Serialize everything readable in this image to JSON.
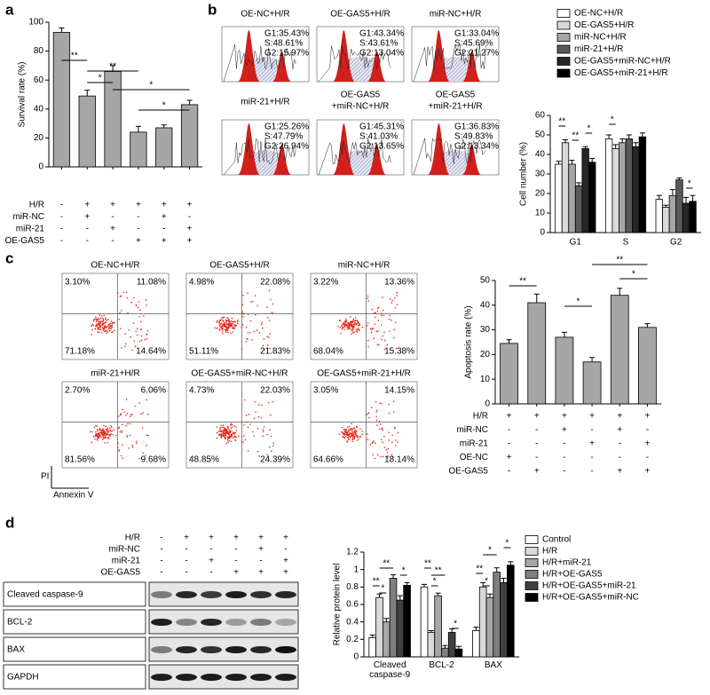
{
  "chart_data": [
    {
      "type": "bar",
      "panel_label": "a",
      "y_label": "Survival rate (%)",
      "color": "#a6a6a6",
      "categories": [
        null,
        null,
        null,
        null,
        null,
        null
      ],
      "values": [
        93,
        49,
        66,
        24,
        27,
        43
      ],
      "errors": [
        3,
        4,
        4,
        4,
        2,
        3
      ],
      "ylim": [
        0,
        100
      ],
      "yticks": [
        0,
        20,
        40,
        60,
        80,
        100
      ],
      "significance": [
        "**",
        "*",
        "**",
        "*",
        "*"
      ],
      "condition_table": [
        {
          "label": "H/R",
          "cells": [
            "-",
            "+",
            "+",
            "+",
            "+",
            "+"
          ]
        },
        {
          "label": "miR-NC",
          "cells": [
            "-",
            "+",
            "-",
            "-",
            "+",
            "-"
          ]
        },
        {
          "label": "miR-21",
          "cells": [
            "-",
            "-",
            "+",
            "-",
            "-",
            "+"
          ]
        },
        {
          "label": "OE-GAS5",
          "cells": [
            "-",
            "-",
            "-",
            "+",
            "+",
            "+"
          ]
        }
      ]
    },
    {
      "type": "grouped-bar",
      "panel_label": "b",
      "y_label": "Cell number (%)",
      "categories": [
        "G1",
        "S",
        "G2"
      ],
      "series": [
        {
          "name": "OE-NC+H/R",
          "color": "#ffffff",
          "values": [
            35,
            48,
            17
          ],
          "errors": [
            1.5,
            2,
            2
          ]
        },
        {
          "name": "OE-GAS5+H/R",
          "color": "#d9d9d9",
          "values": [
            46,
            43,
            13
          ],
          "errors": [
            1.5,
            2,
            1
          ]
        },
        {
          "name": "miR-NC+H/R",
          "color": "#a6a6a6",
          "values": [
            35,
            46,
            19
          ],
          "errors": [
            2,
            2,
            3
          ]
        },
        {
          "name": "miR-21+H/R",
          "color": "#595959",
          "values": [
            24,
            48,
            27
          ],
          "errors": [
            1.5,
            2,
            1
          ]
        },
        {
          "name": "OE-GAS5+miR-NC+H/R",
          "color": "#262626",
          "values": [
            43,
            44,
            15
          ],
          "errors": [
            1,
            2,
            3
          ]
        },
        {
          "name": "OE-GAS5+miR-21+H/R",
          "color": "#000000",
          "values": [
            36,
            49,
            16
          ],
          "errors": [
            2,
            2,
            3
          ]
        }
      ],
      "ylim": [
        0,
        60
      ],
      "yticks": [
        0,
        10,
        20,
        30,
        40,
        50,
        60
      ],
      "significance": [
        "**",
        "**",
        "*",
        "*",
        "*"
      ],
      "histograms": [
        {
          "title": [
            "OE-NC+H/R"
          ],
          "stats": [
            "G1:35.43%",
            "S:48.61%",
            "G2:15.97%"
          ]
        },
        {
          "title": [
            "OE-GAS5+H/R"
          ],
          "stats": [
            "G1:43.34%",
            "S:43.61%",
            "G2:13.04%"
          ]
        },
        {
          "title": [
            "miR-NC+H/R"
          ],
          "stats": [
            "G1:33.04%",
            "S:45.69%",
            "G2:21.27%"
          ]
        },
        {
          "title": [
            "miR-21+H/R"
          ],
          "stats": [
            "G1:25.26%",
            "S:47.79%",
            "G2:26.94%"
          ]
        },
        {
          "title": [
            "OE-GAS5",
            "+miR-NC+H/R"
          ],
          "stats": [
            "G1:45.31%",
            "S:41.03%",
            "G2:13.65%"
          ]
        },
        {
          "title": [
            "OE-GAS5",
            "+miR-21+H/R"
          ],
          "stats": [
            "G1:36.83%",
            "S:49.83%",
            "G2:13.34%"
          ]
        }
      ]
    },
    {
      "type": "bar",
      "panel_label": "c",
      "y_label": "Apoptosis rate (%)",
      "color": "#a6a6a6",
      "categories": [
        null,
        null,
        null,
        null,
        null,
        null
      ],
      "values": [
        24.5,
        41,
        27,
        17,
        44,
        31
      ],
      "errors": [
        1.5,
        3.5,
        2,
        1.8,
        2.8,
        1.5
      ],
      "ylim": [
        0,
        50
      ],
      "yticks": [
        0,
        10,
        20,
        30,
        40,
        50
      ],
      "significance": [
        "**",
        "*",
        "**",
        "*"
      ],
      "condition_table": [
        {
          "label": "H/R",
          "cells": [
            "+",
            "+",
            "+",
            "+",
            "+",
            "+"
          ]
        },
        {
          "label": "miR-NC",
          "cells": [
            "-",
            "-",
            "+",
            "-",
            "+",
            "-"
          ]
        },
        {
          "label": "miR-21",
          "cells": [
            "-",
            "-",
            "-",
            "+",
            "-",
            "+"
          ]
        },
        {
          "label": "OE-NC",
          "cells": [
            "+",
            "-",
            "-",
            "-",
            "-",
            "-"
          ]
        },
        {
          "label": "OE-GAS5",
          "cells": [
            "-",
            "+",
            "-",
            "-",
            "+",
            "+"
          ]
        }
      ],
      "flow_y_label": "PI",
      "flow_x_label": "Annexin V",
      "flow_plots": [
        {
          "title": "OE-NC+H/R",
          "quadrants": [
            "3.10%",
            "11.08%",
            "71.18%",
            "14.64%"
          ]
        },
        {
          "title": "OE-GAS5+H/R",
          "quadrants": [
            "4.98%",
            "22.08%",
            "51.11%",
            "21.83%"
          ]
        },
        {
          "title": "miR-NC+H/R",
          "quadrants": [
            "3.22%",
            "13.36%",
            "68.04%",
            "15.38%"
          ]
        },
        {
          "title": "miR-21+H/R",
          "quadrants": [
            "2.70%",
            "6.06%",
            "81.56%",
            "9.68%"
          ]
        },
        {
          "title": "OE-GAS5+miR-NC+H/R",
          "quadrants": [
            "4.73%",
            "22.03%",
            "48.85%",
            "24.39%"
          ]
        },
        {
          "title": "OE-GAS5+miR-21+H/R",
          "quadrants": [
            "3.05%",
            "14.15%",
            "64.66%",
            "18.14%"
          ]
        }
      ]
    },
    {
      "type": "grouped-bar",
      "panel_label": "d",
      "y_label": "Relative protein level",
      "categories": [
        "Cleaved caspase-9",
        "BCL-2",
        "BAX"
      ],
      "series": [
        {
          "name": "Control",
          "color": "#ffffff",
          "values": [
            0.22,
            0.8,
            0.3
          ],
          "errors": [
            0.03,
            0.03,
            0.04
          ]
        },
        {
          "name": "H/R",
          "color": "#d9d9d9",
          "values": [
            0.68,
            0.28,
            0.8
          ],
          "errors": [
            0.04,
            0.02,
            0.05
          ]
        },
        {
          "name": "H/R+miR-21",
          "color": "#a6a6a6",
          "values": [
            0.4,
            0.7,
            0.68
          ],
          "errors": [
            0.04,
            0.03,
            0.04
          ]
        },
        {
          "name": "H/R+OE-GAS5",
          "color": "#7f7f7f",
          "values": [
            0.9,
            0.1,
            0.97
          ],
          "errors": [
            0.04,
            0.03,
            0.05
          ]
        },
        {
          "name": "H/R+OE-GAS5+miR-21",
          "color": "#404040",
          "values": [
            0.65,
            0.28,
            0.85
          ],
          "errors": [
            0.05,
            0.04,
            0.05
          ]
        },
        {
          "name": "H/R+OE-GAS5+miR-NC",
          "color": "#000000",
          "values": [
            0.82,
            0.09,
            1.05
          ],
          "errors": [
            0.03,
            0.03,
            0.04
          ]
        }
      ],
      "ylim": [
        0,
        1.2
      ],
      "yticks": [
        0,
        0.2,
        0.4,
        0.6,
        0.8,
        1.0,
        1.2
      ],
      "significance": [
        "**",
        "*",
        "**",
        "*",
        "**",
        "*",
        "**",
        "*",
        "**",
        "*",
        "*",
        "*"
      ],
      "blot_rows": [
        "Cleaved caspase-9",
        "BCL-2",
        "BAX",
        "GAPDH"
      ],
      "condition_table": [
        {
          "label": "H/R",
          "cells": [
            "-",
            "+",
            "+",
            "+",
            "+",
            "+"
          ]
        },
        {
          "label": "miR-NC",
          "cells": [
            "-",
            "-",
            "-",
            "-",
            "+",
            "-"
          ]
        },
        {
          "label": "miR-21",
          "cells": [
            "-",
            "-",
            "+",
            "-",
            "-",
            "+"
          ]
        },
        {
          "label": "OE-GAS5",
          "cells": [
            "-",
            "-",
            "-",
            "+",
            "+",
            "+"
          ]
        }
      ]
    }
  ]
}
